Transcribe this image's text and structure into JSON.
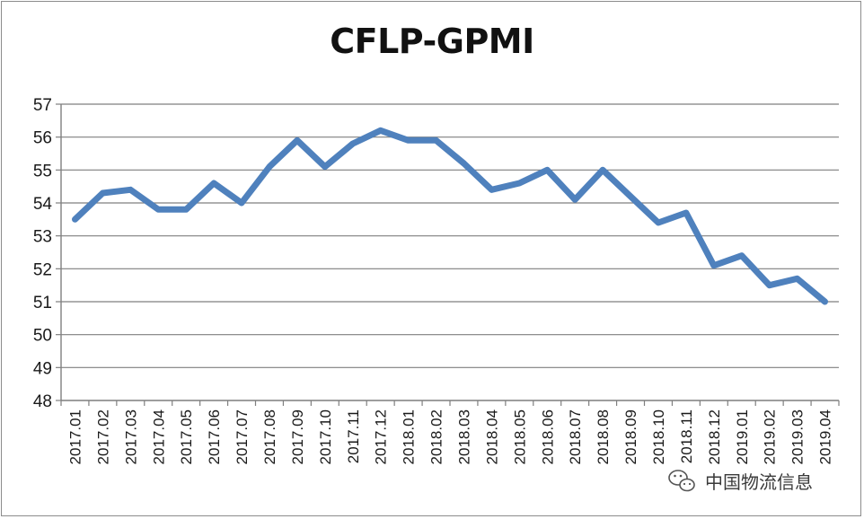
{
  "chart_data": {
    "type": "line",
    "title": "CFLP-GPMI",
    "xlabel": "",
    "ylabel": "",
    "ylim": [
      48,
      57
    ],
    "yticks": [
      48,
      49,
      50,
      51,
      52,
      53,
      54,
      55,
      56,
      57
    ],
    "grid": true,
    "legend": "none",
    "categories": [
      "2017.01",
      "2017.02",
      "2017.03",
      "2017.04",
      "2017.05",
      "2017.06",
      "2017.07",
      "2017.08",
      "2017.09",
      "2017.10",
      "2017.11",
      "2017.12",
      "2018.01",
      "2018.02",
      "2018.03",
      "2018.04",
      "2018.05",
      "2018.06",
      "2018.07",
      "2018.08",
      "2018.09",
      "2018.10",
      "2018.11",
      "2018.12",
      "2019.01",
      "2019.02",
      "2019.03",
      "2019.04"
    ],
    "series": [
      {
        "values": [
          53.5,
          54.3,
          54.4,
          53.8,
          53.8,
          54.6,
          54.0,
          55.1,
          55.9,
          55.1,
          55.8,
          56.2,
          55.9,
          55.9,
          55.2,
          54.4,
          54.6,
          55.0,
          54.1,
          55.0,
          54.2,
          53.4,
          53.7,
          52.1,
          52.4,
          51.5,
          51.7,
          51.0
        ],
        "color": "#4f81bd"
      }
    ]
  },
  "watermark": {
    "text": "中国物流信息",
    "icon": "wechat-icon"
  },
  "colors": {
    "line": "#4f81bd",
    "grid": "#7f7f7f",
    "axis": "#7f7f7f"
  }
}
